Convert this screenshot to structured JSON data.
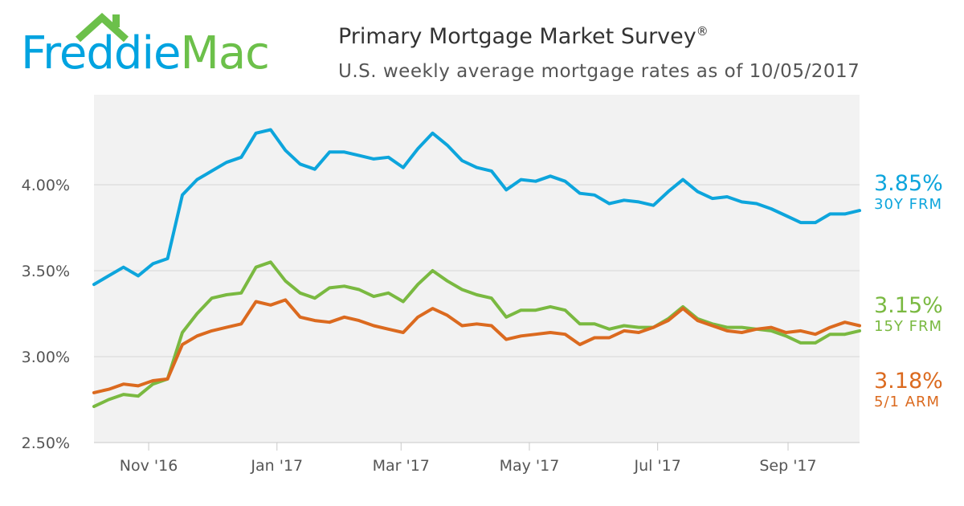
{
  "logo": {
    "text_part1": "Freddie",
    "text_part2": "Mac"
  },
  "header": {
    "title": "Primary Mortgage Market Survey",
    "title_mark": "®",
    "subtitle": "U.S. weekly average mortgage rates as of 10/05/2017"
  },
  "colors": {
    "frm30": "#0da5dc",
    "frm15": "#7ab941",
    "arm51": "#db6a1f",
    "logo_blue": "#00a3e0",
    "logo_green": "#6cc04a"
  },
  "legend": [
    {
      "value": "3.85%",
      "label": "30Y FRM",
      "color": "#0da5dc"
    },
    {
      "value": "3.15%",
      "label": "15Y FRM",
      "color": "#7ab941"
    },
    {
      "value": "3.18%",
      "label": "5/1 ARM",
      "color": "#db6a1f"
    }
  ],
  "chart_data": {
    "type": "line",
    "x_start": "2016-10-06",
    "x_end": "2017-10-05",
    "x_interval_days": 7,
    "yticks": [
      "2.50%",
      "3.00%",
      "3.50%",
      "4.00%"
    ],
    "ylim": [
      2.5,
      4.5
    ],
    "xticks": [
      {
        "label": "Nov '16",
        "date": "2016-11-01"
      },
      {
        "label": "Jan '17",
        "date": "2017-01-01"
      },
      {
        "label": "Mar '17",
        "date": "2017-03-01"
      },
      {
        "label": "May '17",
        "date": "2017-05-01"
      },
      {
        "label": "Jul '17",
        "date": "2017-07-01"
      },
      {
        "label": "Sep '17",
        "date": "2017-09-01"
      }
    ],
    "grid": true,
    "legend_position": "right",
    "series": [
      {
        "name": "30Y FRM",
        "color": "#0da5dc",
        "values": [
          3.42,
          3.47,
          3.52,
          3.47,
          3.54,
          3.57,
          3.94,
          4.03,
          4.08,
          4.13,
          4.16,
          4.3,
          4.32,
          4.2,
          4.12,
          4.09,
          4.19,
          4.19,
          4.17,
          4.15,
          4.16,
          4.1,
          4.21,
          4.3,
          4.23,
          4.14,
          4.1,
          4.08,
          3.97,
          4.03,
          4.02,
          4.05,
          4.02,
          3.95,
          3.94,
          3.89,
          3.91,
          3.9,
          3.88,
          3.96,
          4.03,
          3.96,
          3.92,
          3.93,
          3.9,
          3.89,
          3.86,
          3.82,
          3.78,
          3.78,
          3.83,
          3.83,
          3.85
        ]
      },
      {
        "name": "15Y FRM",
        "color": "#7ab941",
        "values": [
          2.71,
          2.75,
          2.78,
          2.77,
          2.84,
          2.87,
          3.14,
          3.25,
          3.34,
          3.36,
          3.37,
          3.52,
          3.55,
          3.44,
          3.37,
          3.34,
          3.4,
          3.41,
          3.39,
          3.35,
          3.37,
          3.32,
          3.42,
          3.5,
          3.44,
          3.39,
          3.36,
          3.34,
          3.23,
          3.27,
          3.27,
          3.29,
          3.27,
          3.19,
          3.19,
          3.16,
          3.18,
          3.17,
          3.17,
          3.22,
          3.29,
          3.22,
          3.19,
          3.17,
          3.17,
          3.16,
          3.15,
          3.12,
          3.08,
          3.08,
          3.13,
          3.13,
          3.15
        ]
      },
      {
        "name": "5/1 ARM",
        "color": "#db6a1f",
        "values": [
          2.79,
          2.81,
          2.84,
          2.83,
          2.86,
          2.87,
          3.07,
          3.12,
          3.15,
          3.17,
          3.19,
          3.32,
          3.3,
          3.33,
          3.23,
          3.21,
          3.2,
          3.23,
          3.21,
          3.18,
          3.16,
          3.14,
          3.23,
          3.28,
          3.24,
          3.18,
          3.19,
          3.18,
          3.1,
          3.12,
          3.13,
          3.14,
          3.13,
          3.07,
          3.11,
          3.11,
          3.15,
          3.14,
          3.17,
          3.21,
          3.28,
          3.21,
          3.18,
          3.15,
          3.14,
          3.16,
          3.17,
          3.14,
          3.15,
          3.13,
          3.17,
          3.2,
          3.18
        ]
      }
    ]
  }
}
